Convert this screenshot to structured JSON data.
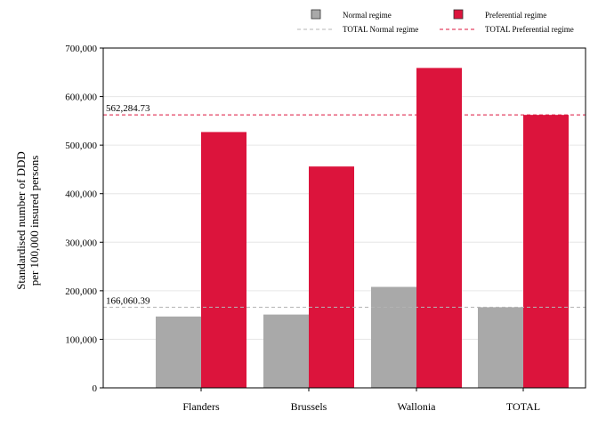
{
  "colors": {
    "normal": "#a9a9a9",
    "preferential": "#dc143c",
    "normal_line": "#b4b4b4",
    "preferential_line": "#dc143c",
    "grid": "#e6e6e6"
  },
  "chart_data": {
    "type": "bar",
    "title": "",
    "xlabel": "",
    "ylabel_lines": [
      "Standardised number of DDD",
      "per 100,000 insured persons"
    ],
    "categories": [
      "Flanders",
      "Brussels",
      "Wallonia",
      "TOTAL"
    ],
    "series": [
      {
        "name": "Normal regime",
        "values": [
          147000,
          151000,
          208000,
          166060.39
        ]
      },
      {
        "name": "Preferential regime",
        "values": [
          527000,
          456000,
          659000,
          562284.73
        ]
      }
    ],
    "ylim": [
      0,
      700000
    ],
    "yticks": [
      0,
      100000,
      200000,
      300000,
      400000,
      500000,
      600000,
      700000
    ],
    "ytick_labels": [
      "0",
      "100,000",
      "200,000",
      "300,000",
      "400,000",
      "500,000",
      "600,000",
      "700,000"
    ],
    "grid": true,
    "legend_position": "top-right",
    "reference_lines": [
      {
        "name": "TOTAL Normal regime",
        "value": 166060.39,
        "label": "166,060.39"
      },
      {
        "name": "TOTAL Preferential regime",
        "value": 562284.73,
        "label": "562,284.73"
      }
    ]
  }
}
